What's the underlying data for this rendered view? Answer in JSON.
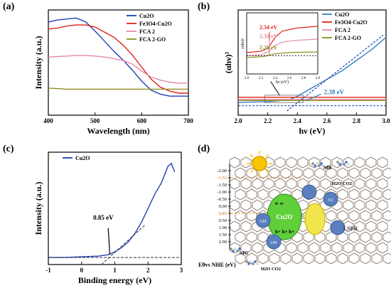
{
  "panels": {
    "a": {
      "label": "(a)"
    },
    "b": {
      "label": "(b)"
    },
    "c": {
      "label": "(c)"
    },
    "d": {
      "label": "(d)"
    }
  },
  "chart_data": [
    {
      "type": "line",
      "title": "",
      "xlabel": "Wavelength (nm)",
      "ylabel": "Intensity (a.u.)",
      "xlim": [
        400,
        700
      ],
      "xticks": [
        "400",
        "500",
        "600",
        "700"
      ],
      "legend": "top-right",
      "series": [
        {
          "name": "Cu2O",
          "color": "#1f3fb5",
          "x": [
            400,
            420,
            440,
            460,
            480,
            500,
            520,
            540,
            560,
            580,
            600,
            620,
            640,
            660,
            680,
            700
          ],
          "y": [
            0.93,
            0.95,
            0.96,
            0.97,
            0.93,
            0.84,
            0.74,
            0.64,
            0.55,
            0.45,
            0.34,
            0.25,
            0.21,
            0.19,
            0.19,
            0.19
          ]
        },
        {
          "name": "Fe3O4-Cu2O",
          "color": "#e2231a",
          "x": [
            400,
            420,
            440,
            460,
            480,
            500,
            520,
            540,
            560,
            580,
            600,
            620,
            640,
            660,
            680,
            700
          ],
          "y": [
            0.86,
            0.87,
            0.89,
            0.9,
            0.9,
            0.88,
            0.83,
            0.78,
            0.7,
            0.6,
            0.48,
            0.36,
            0.28,
            0.24,
            0.22,
            0.22
          ]
        },
        {
          "name": "FCA 2",
          "color": "#e68aa6",
          "x": [
            400,
            420,
            440,
            460,
            480,
            500,
            520,
            540,
            560,
            580,
            600,
            620,
            640,
            660,
            680,
            700
          ],
          "y": [
            0.58,
            0.585,
            0.59,
            0.595,
            0.595,
            0.59,
            0.58,
            0.565,
            0.545,
            0.51,
            0.44,
            0.38,
            0.35,
            0.33,
            0.32,
            0.32
          ]
        },
        {
          "name": "FCA 2-GO",
          "color": "#8f8f1e",
          "x": [
            400,
            420,
            440,
            460,
            480,
            500,
            520,
            540,
            560,
            580,
            600,
            620,
            640,
            660,
            680,
            700
          ],
          "y": [
            0.27,
            0.265,
            0.26,
            0.26,
            0.26,
            0.26,
            0.26,
            0.26,
            0.26,
            0.26,
            0.26,
            0.26,
            0.26,
            0.26,
            0.26,
            0.26
          ]
        }
      ]
    },
    {
      "type": "line",
      "title": "",
      "xlabel": "hν (eV)",
      "ylabel": "(αhν)²",
      "xlim": [
        2.0,
        3.0
      ],
      "xticks": [
        "2.0",
        "2.2",
        "2.4",
        "2.6",
        "2.8",
        "3.0"
      ],
      "legend": "top-right",
      "series": [
        {
          "name": "Cu2O",
          "color": "#2f7fc1",
          "x": [
            2.0,
            2.2,
            2.3,
            2.35,
            2.4,
            2.45,
            2.5,
            2.6,
            2.7,
            2.8,
            2.9,
            3.0
          ],
          "y": [
            0.06,
            0.065,
            0.07,
            0.075,
            0.09,
            0.11,
            0.13,
            0.17,
            0.21,
            0.26,
            0.31,
            0.37
          ]
        },
        {
          "name": "Fe3O4-Cu2O",
          "color": "#e2231a",
          "x": [
            2.0,
            3.0
          ],
          "y": [
            0.085,
            0.085
          ]
        },
        {
          "name": "FCA 2",
          "color": "#e68aa6",
          "x": [
            2.0,
            3.0
          ],
          "y": [
            0.075,
            0.075
          ]
        },
        {
          "name": "FCA 2-GO",
          "color": "#8f8f1e",
          "x": [
            2.0,
            3.0
          ],
          "y": [
            0.07,
            0.07
          ]
        }
      ],
      "annotations": [
        "2.38 eV"
      ],
      "inset": {
        "ylabel": "(αhν)²",
        "xlabel": "hν (eV)",
        "xlim": [
          2.0,
          3.0
        ],
        "xticks": [
          "2.0",
          "2.2",
          "2.4",
          "2.6",
          "2.8",
          "3.0"
        ],
        "annotations": [
          "2.34 eV",
          "2.30 eV",
          "2.26 eV"
        ]
      }
    },
    {
      "type": "line",
      "title": "",
      "xlabel": "Binding energy (eV)",
      "ylabel": "Intensity (a.u.)",
      "xlim": [
        -1,
        3
      ],
      "xticks": [
        "-1",
        "0",
        "1",
        "2",
        "3"
      ],
      "legend": "top-left",
      "series": [
        {
          "name": "Cu2O",
          "color": "#1f3fb5",
          "x": [
            -1,
            -0.5,
            0,
            0.5,
            0.8,
            1.0,
            1.2,
            1.4,
            1.6,
            1.8,
            2.0,
            2.2,
            2.4,
            2.6,
            2.7,
            2.8
          ],
          "y": [
            0.05,
            0.05,
            0.055,
            0.06,
            0.07,
            0.09,
            0.12,
            0.16,
            0.22,
            0.3,
            0.4,
            0.5,
            0.58,
            0.7,
            0.72,
            0.66
          ]
        }
      ],
      "annotations": [
        "0.85 eV"
      ]
    }
  ],
  "diagram": {
    "axis_label": "Eθvs NHE (eV)",
    "levels": [
      "-2.00",
      "-1.53",
      "-1.50",
      "-1.00",
      "-0.50",
      "0.00",
      "0.85",
      "0.50",
      "1.00",
      "1.50",
      "2.00"
    ],
    "labels": [
      "MB",
      "H2O CO2",
      "Cu2O",
      "OH",
      "O2",
      "e-",
      "h+",
      "LSPR",
      "MG",
      "H2O CO2",
      "Fe3O4"
    ]
  }
}
